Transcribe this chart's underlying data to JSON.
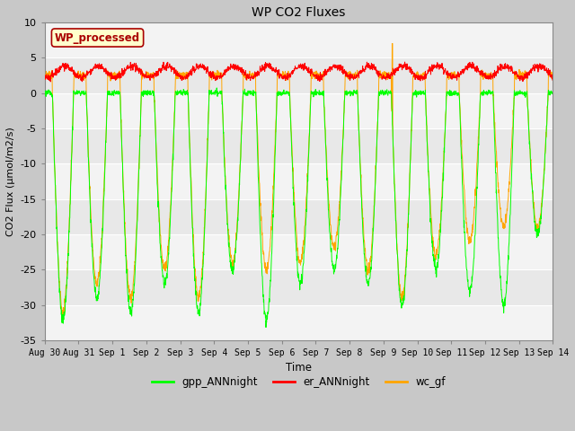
{
  "title": "WP CO2 Fluxes",
  "xlabel": "Time",
  "ylabel": "CO2 Flux (μmol/m2/s)",
  "ylim": [
    -35,
    10
  ],
  "yticks": [
    -35,
    -30,
    -25,
    -20,
    -15,
    -10,
    -5,
    0,
    5,
    10
  ],
  "background_color": "#c8c8c8",
  "plot_bg_color": "#e8e8e8",
  "grid_color": "#ffffff",
  "legend_labels": [
    "gpp_ANNnight",
    "er_ANNnight",
    "wc_gf"
  ],
  "legend_colors": [
    "#00ff00",
    "#ff0000",
    "#ffa500"
  ],
  "text_box_label": "WP_processed",
  "text_box_facecolor": "#ffffcc",
  "text_box_edgecolor": "#aa0000",
  "text_box_textcolor": "#aa0000",
  "n_days": 15,
  "points_per_day": 144,
  "xtick_labels": [
    "Aug 30",
    "Aug 31",
    "Sep 1",
    "Sep 2",
    "Sep 3",
    "Sep 4",
    "Sep 5",
    "Sep 6",
    "Sep 7",
    "Sep 8",
    "Sep 9",
    "Sep 10",
    "Sep 11",
    "Sep 12",
    "Sep 13",
    "Sep 14"
  ],
  "gpp_color": "#00ff00",
  "er_color": "#ff0000",
  "wc_color": "#ffa500",
  "line_width": 0.7,
  "figsize": [
    6.4,
    4.8
  ],
  "dpi": 100
}
